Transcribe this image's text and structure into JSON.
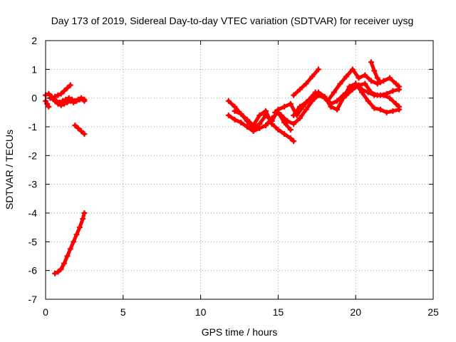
{
  "chart_data": {
    "type": "scatter",
    "title": "Day 173 of 2019, Sidereal Day-to-day VTEC variation (SDTVAR) for receiver uysg",
    "xlabel": "GPS time / hours",
    "ylabel": "SDTVAR / TECUs",
    "xlim": [
      0,
      25
    ],
    "ylim": [
      -7,
      2
    ],
    "xticks": [
      "0",
      "5",
      "10",
      "15",
      "20",
      "25"
    ],
    "yticks": [
      "-7",
      "-6",
      "-5",
      "-4",
      "-3",
      "-2",
      "-1",
      "0",
      "1",
      "2"
    ],
    "grid": true,
    "marker_color": "#ff0000",
    "series": [
      {
        "x": [
          0.0,
          0.2,
          0.4,
          0.6,
          0.8,
          1.0,
          1.2,
          1.4,
          1.6,
          1.8,
          2.0,
          2.2,
          2.4,
          2.5
        ],
        "y": [
          0.1,
          0.15,
          0.05,
          -0.1,
          -0.2,
          -0.25,
          -0.2,
          -0.15,
          -0.1,
          -0.15,
          -0.1,
          -0.05,
          -0.05,
          -0.1
        ]
      },
      {
        "x": [
          0.3,
          0.5,
          0.7,
          0.9,
          1.1,
          1.3,
          1.5,
          1.7,
          1.9,
          2.1,
          2.3,
          2.5
        ],
        "y": [
          0.0,
          -0.05,
          -0.1,
          -0.15,
          -0.1,
          -0.05,
          0.0,
          -0.05,
          -0.1,
          -0.05,
          0.0,
          -0.05
        ]
      },
      {
        "x": [
          0.6,
          0.8,
          1.0,
          1.2,
          1.4,
          1.6
        ],
        "y": [
          0.05,
          0.1,
          0.15,
          0.25,
          0.35,
          0.45
        ]
      },
      {
        "x": [
          0.0,
          0.1,
          0.2
        ],
        "y": [
          -0.1,
          -0.2,
          -0.3
        ]
      },
      {
        "x": [
          1.9,
          2.1,
          2.3,
          2.5
        ],
        "y": [
          -0.95,
          -1.05,
          -1.15,
          -1.25
        ]
      },
      {
        "x": [
          0.6,
          0.8,
          1.0,
          1.2,
          1.4,
          1.6,
          1.8,
          2.0,
          2.2,
          2.4,
          2.5
        ],
        "y": [
          -6.1,
          -6.05,
          -5.95,
          -5.75,
          -5.5,
          -5.25,
          -5.0,
          -4.75,
          -4.5,
          -4.2,
          -4.0
        ]
      },
      {
        "x": [
          11.8,
          12.2,
          12.6,
          13.0,
          13.4,
          13.8,
          14.2,
          14.6,
          15.0,
          15.4,
          15.8,
          16.2,
          16.6,
          17.0,
          17.4
        ],
        "y": [
          -0.1,
          -0.3,
          -0.55,
          -0.8,
          -1.05,
          -0.9,
          -0.6,
          -0.8,
          -0.4,
          -0.3,
          -0.2,
          -0.6,
          -0.3,
          -0.05,
          0.2
        ]
      },
      {
        "x": [
          11.8,
          12.2,
          12.6,
          13.0,
          13.4,
          13.8,
          14.2,
          14.6,
          15.0,
          15.4,
          15.8
        ],
        "y": [
          -0.6,
          -0.75,
          -0.85,
          -1.0,
          -1.15,
          -1.05,
          -0.95,
          -0.7,
          -0.5,
          -0.85,
          -1.1
        ]
      },
      {
        "x": [
          12.2,
          12.6,
          13.0,
          13.4,
          13.8,
          14.2,
          14.6,
          15.0,
          15.4,
          15.8,
          16.0
        ],
        "y": [
          -0.45,
          -0.55,
          -0.75,
          -0.95,
          -0.6,
          -0.45,
          -0.9,
          -1.1,
          -1.25,
          -1.4,
          -1.5
        ]
      },
      {
        "x": [
          14.8,
          15.2,
          15.6,
          16.0,
          16.4,
          16.8,
          17.2,
          17.6,
          18.0,
          18.4,
          18.8,
          19.2,
          19.6,
          20.0
        ],
        "y": [
          -0.5,
          -0.6,
          -0.8,
          -0.9,
          -0.7,
          -0.4,
          -0.1,
          0.1,
          0.0,
          -0.2,
          -0.1,
          0.1,
          0.3,
          0.4
        ]
      },
      {
        "x": [
          16.0,
          16.4,
          16.8,
          17.2,
          17.6,
          18.0,
          18.4,
          18.8,
          19.2,
          19.6,
          20.0,
          20.4,
          20.8,
          21.2,
          21.6,
          22.0,
          22.4,
          22.8
        ],
        "y": [
          -0.6,
          -0.3,
          -0.15,
          0.0,
          0.2,
          0.05,
          -0.3,
          -0.4,
          0.0,
          0.4,
          0.5,
          0.3,
          0.2,
          0.1,
          0.1,
          0.15,
          0.25,
          0.3
        ]
      },
      {
        "x": [
          16.0,
          16.4,
          16.8,
          17.2,
          17.6
        ],
        "y": [
          0.1,
          0.3,
          0.5,
          0.75,
          1.0
        ]
      },
      {
        "x": [
          18.2,
          18.6,
          19.0,
          19.4,
          19.8,
          20.2,
          20.6,
          21.0,
          21.4,
          21.8,
          22.2,
          22.6,
          22.8
        ],
        "y": [
          -0.1,
          0.2,
          0.5,
          0.75,
          1.0,
          0.7,
          0.8,
          0.6,
          0.5,
          0.6,
          0.7,
          0.5,
          0.4
        ]
      },
      {
        "x": [
          20.0,
          20.4,
          20.8,
          21.2,
          21.6,
          22.0,
          22.4,
          22.8
        ],
        "y": [
          0.5,
          0.2,
          -0.1,
          -0.35,
          -0.4,
          -0.5,
          -0.45,
          -0.4
        ]
      },
      {
        "x": [
          21.0,
          21.2,
          21.4,
          21.6
        ],
        "y": [
          1.25,
          0.95,
          0.7,
          0.55
        ]
      },
      {
        "x": [
          19.4,
          19.8,
          20.2,
          20.6,
          21.0,
          21.4,
          21.8,
          22.2,
          22.6,
          22.8
        ],
        "y": [
          0.1,
          0.3,
          0.45,
          0.5,
          0.2,
          0.1,
          0.1,
          0.0,
          -0.2,
          -0.3
        ]
      }
    ]
  }
}
